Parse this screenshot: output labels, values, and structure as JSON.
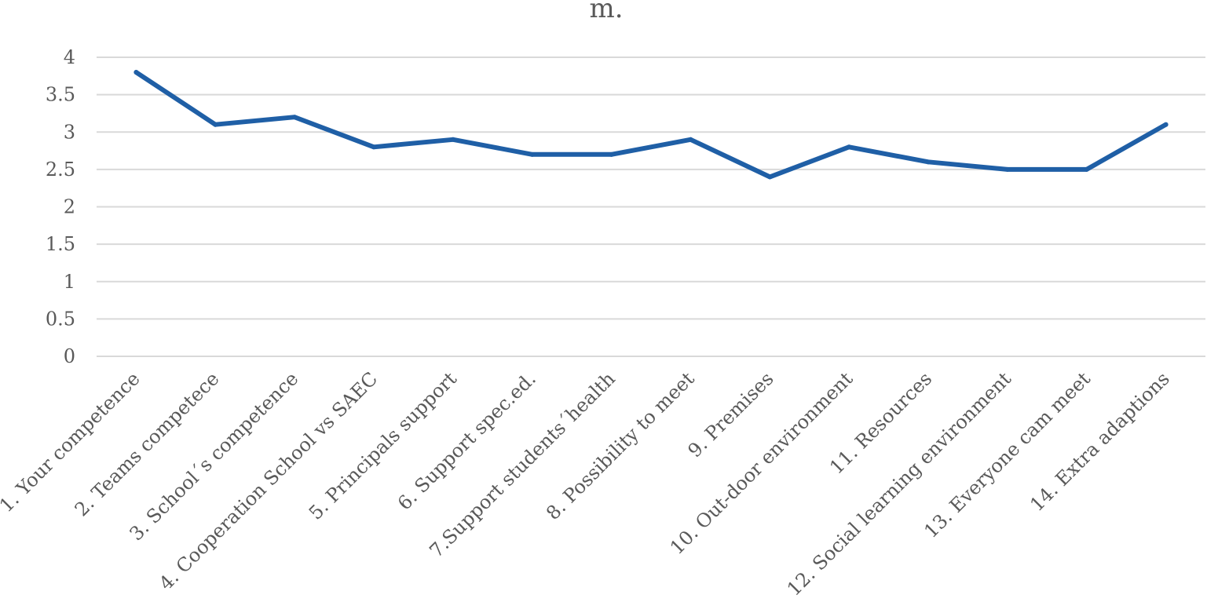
{
  "chart_data": {
    "type": "line",
    "title": "m.",
    "xlabel": "",
    "ylabel": "",
    "ylim": [
      0,
      4
    ],
    "yticks": [
      "0",
      "0.5",
      "1",
      "1.5",
      "2",
      "2.5",
      "3",
      "3.5",
      "4"
    ],
    "grid": true,
    "legend": "none",
    "categories": [
      "1. Your competence",
      "2. Teams competece",
      "3. School´s competence",
      "4. Cooperation School vs SAEC",
      "5. Principals support",
      "6. Support spec.ed.",
      "7.Support students´health",
      "8. Possibility to meet",
      "9. Premises",
      "10. Out-door environment",
      "11. Resources",
      "12. Social learning environment",
      "13. Everyone cam meet",
      "14. Extra adaptions"
    ],
    "series": [
      {
        "values": [
          3.8,
          3.1,
          3.2,
          2.8,
          2.9,
          2.7,
          2.7,
          2.9,
          2.4,
          2.8,
          2.6,
          2.5,
          2.5,
          3.1
        ],
        "color": "#1f5fa6"
      }
    ]
  }
}
